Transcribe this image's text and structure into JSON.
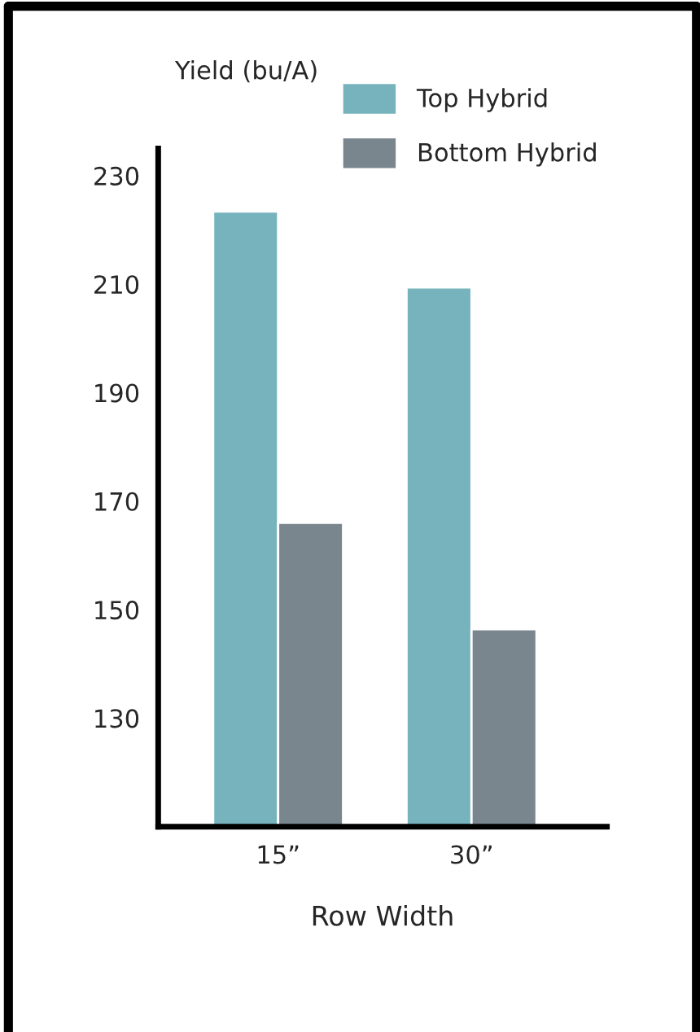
{
  "chart_data": {
    "type": "bar",
    "xlabel": "Row Width",
    "ylabel": "Yield (bu/A)",
    "categories": [
      "15”",
      "30”"
    ],
    "series": [
      {
        "name": "Top Hybrid",
        "color": "#76b3bd",
        "values": [
          223.4,
          209.4
        ]
      },
      {
        "name": "Bottom Hybrid",
        "color": "#7a868e",
        "values": [
          166,
          146.4
        ]
      }
    ],
    "ylim": [
      110,
      235
    ],
    "yticks": [
      130,
      150,
      170,
      190,
      210,
      230
    ],
    "grid": false,
    "legend": "top right"
  }
}
